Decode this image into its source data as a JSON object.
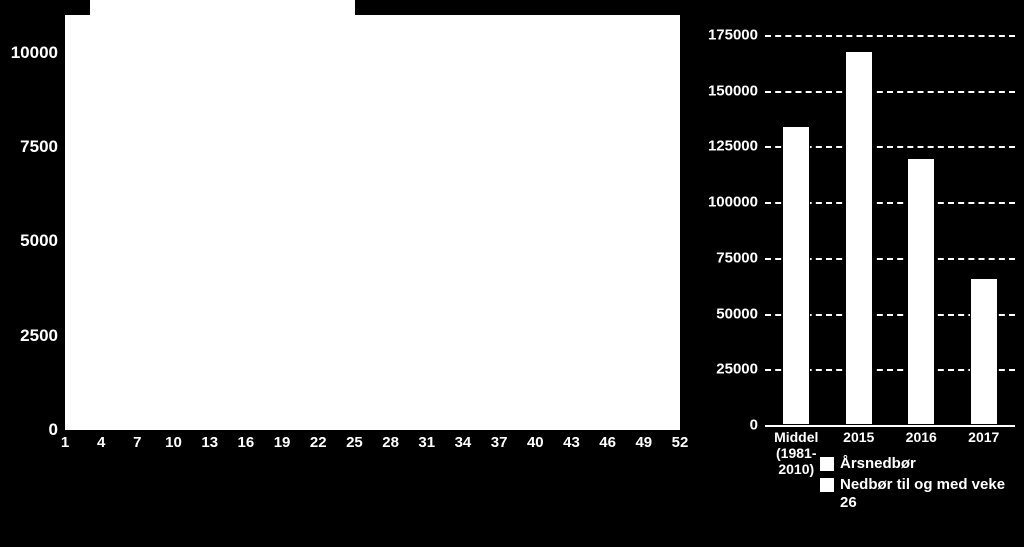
{
  "background_color": "#000000",
  "left_chart": {
    "type": "line",
    "plot_background": "#ffffff",
    "tick_color": "#ffffff",
    "tick_fontsize_y": 17,
    "tick_fontsize_x": 15,
    "tick_fontweight": "bold",
    "ylim": [
      0,
      11000
    ],
    "yticks": [
      0,
      2500,
      5000,
      7500,
      10000
    ],
    "xlim": [
      1,
      52
    ],
    "xticks": [
      1,
      4,
      7,
      10,
      13,
      16,
      19,
      22,
      25,
      28,
      31,
      34,
      37,
      40,
      43,
      46,
      49,
      52
    ],
    "grid": false
  },
  "right_chart": {
    "type": "bar",
    "tick_color": "#ffffff",
    "grid_color": "#ffffff",
    "grid_dash": true,
    "bar_color": "#ffffff",
    "bar_border_color": "#000000",
    "tick_fontsize": 15,
    "xtick_fontsize": 14,
    "tick_fontweight": "bold",
    "ylim": [
      0,
      175000
    ],
    "yticks": [
      0,
      25000,
      50000,
      75000,
      100000,
      125000,
      150000,
      175000
    ],
    "categories": [
      {
        "label_line1": "Middel",
        "label_line2": "(1981-",
        "label_line3": "2010)"
      },
      {
        "label_line1": "2015"
      },
      {
        "label_line1": "2016"
      },
      {
        "label_line1": "2017"
      }
    ],
    "series": [
      {
        "name": "Årsnedbør",
        "values": [
          134000,
          168000,
          120000,
          null
        ]
      },
      {
        "name": "Nedbør til og med veke 26",
        "values": [
          null,
          null,
          null,
          66000
        ]
      }
    ],
    "legend_position": "bottom"
  }
}
